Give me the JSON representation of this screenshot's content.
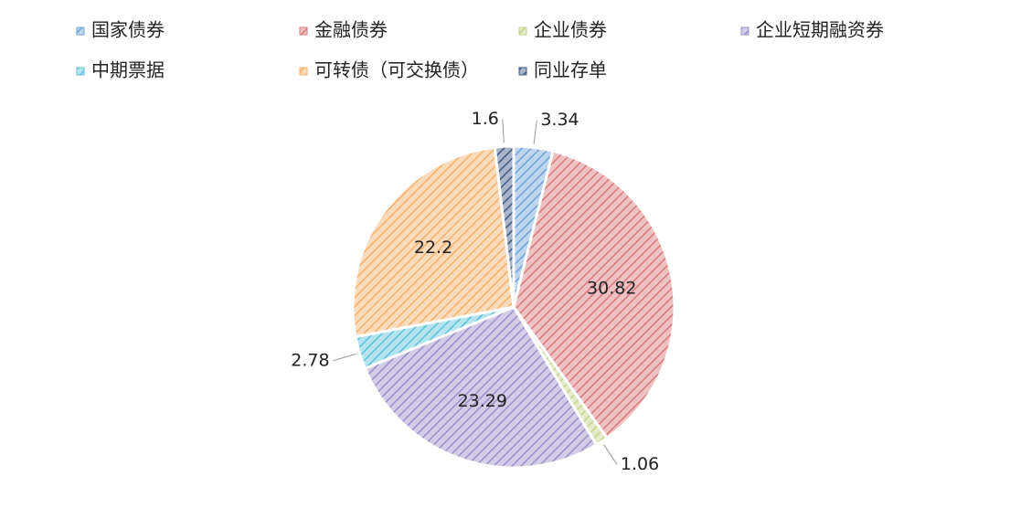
{
  "chart_data": {
    "type": "pie",
    "categories": [
      "国家债券",
      "金融债券",
      "企业债券",
      "企业短期融资券",
      "中期票据",
      "可转债（可交换债）",
      "同业存单"
    ],
    "values": [
      3.34,
      30.82,
      1.06,
      23.29,
      2.78,
      22.2,
      1.6
    ],
    "colors": [
      "#6fa3d8",
      "#d9797a",
      "#c3d48a",
      "#9d8fcb",
      "#5cc3dc",
      "#f5b06a",
      "#3f5b85"
    ],
    "legend": "top"
  }
}
